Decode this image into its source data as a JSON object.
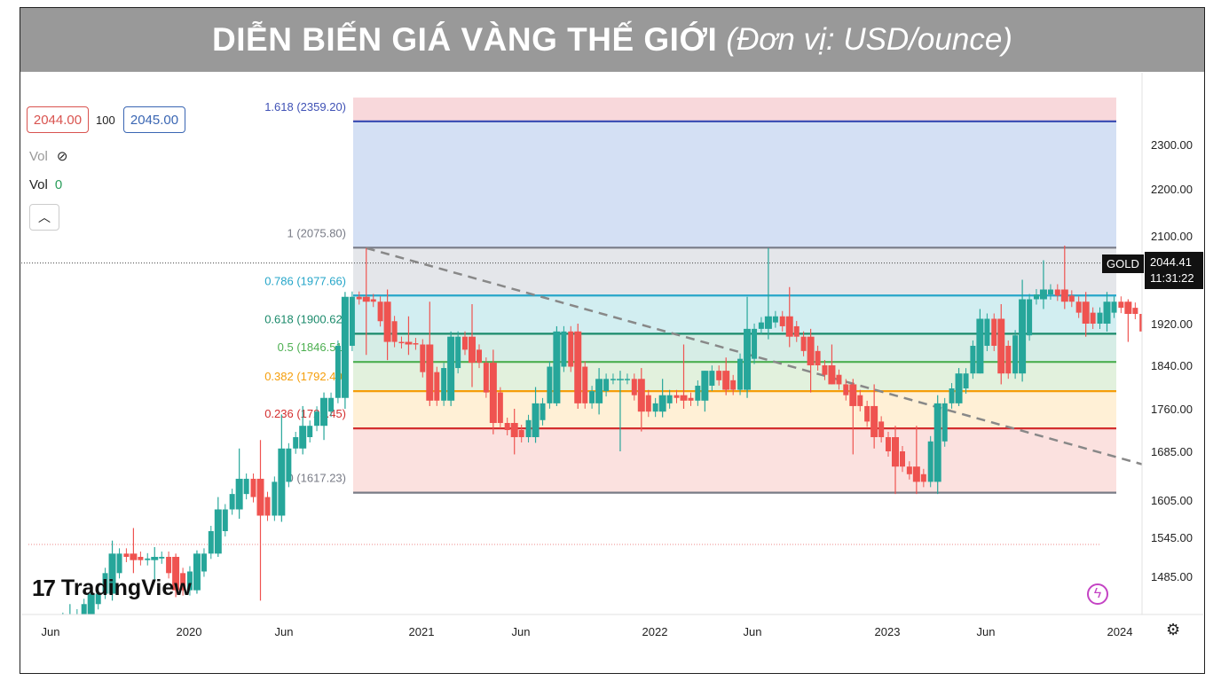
{
  "header": {
    "title": "DIỄN BIẾN GIÁ VÀNG THẾ GIỚI",
    "subtitle": "(Đơn vị: USD/ounce)"
  },
  "toolbar": {
    "sell_price": "2044.00",
    "spread": "100",
    "buy_price": "2045.00",
    "vol_hidden_label": "Vol",
    "vol_label": "Vol",
    "vol_value": "0",
    "collapse_icon": "chevron-up-icon",
    "hide_icon": "eye-off-icon"
  },
  "symbol": {
    "name": "GOLD",
    "last_price": "2044.41",
    "countdown": "11:31:22"
  },
  "brand": {
    "logo_mark": "17",
    "name": "TradingView"
  },
  "colors": {
    "up": "#26a69a",
    "down": "#ef5350",
    "banner": "#999999"
  },
  "chart_data": {
    "type": "candlestick",
    "title": "DIỄN BIẾN GIÁ VÀNG THẾ GIỚI",
    "ylabel": "USD/ounce",
    "x_ticks": [
      "Jun",
      "2020",
      "Jun",
      "2021",
      "Jun",
      "2022",
      "Jun",
      "2023",
      "Jun",
      "2024"
    ],
    "y_ticks": [
      "1485.00",
      "1545.00",
      "1605.00",
      "1685.00",
      "1760.00",
      "1840.00",
      "1920.00",
      "2100.00",
      "2200.00",
      "2300.00"
    ],
    "y_range": [
      1430,
      2410
    ],
    "x_range": [
      "2019-05",
      "2024-02"
    ],
    "last_price": 2044.41,
    "fibonacci": [
      {
        "label": "1.618 (2359.20)",
        "level": 1.618,
        "value": 2359.2,
        "color": "#3f51b5"
      },
      {
        "label": "1 (2075.80)",
        "level": 1,
        "value": 2075.8,
        "color": "#787b86"
      },
      {
        "label": "0.786 (1977.66)",
        "level": 0.786,
        "value": 1977.66,
        "color": "#26a6c9"
      },
      {
        "label": "0.618 (1900.62)",
        "level": 0.618,
        "value": 1900.62,
        "color": "#1b8a6b"
      },
      {
        "label": "0.5 (1846.51)",
        "level": 0.5,
        "value": 1846.51,
        "color": "#4caf50"
      },
      {
        "label": "0.382 (1792.40)",
        "level": 0.382,
        "value": 1792.4,
        "color": "#f59e0b"
      },
      {
        "label": "0.236 (1725.45)",
        "level": 0.236,
        "value": 1725.45,
        "color": "#d32f2f"
      },
      {
        "label": "0 (1617.23)",
        "level": 0,
        "value": 1617.23,
        "color": "#787b86"
      }
    ],
    "trend_line": {
      "from": {
        "date": "2020-08",
        "value": 2075
      },
      "to": {
        "date": "2024-01",
        "value": 1617
      }
    },
    "candles": [
      {
        "date": "2019-06",
        "o": 1420,
        "h": 1445,
        "c": 1430,
        "l": 1410
      },
      {
        "date": "2019-07",
        "o": 1430,
        "h": 1470,
        "c": 1460,
        "l": 1420
      },
      {
        "date": "2019-08",
        "o": 1460,
        "h": 1540,
        "c": 1520,
        "l": 1450
      },
      {
        "date": "2019-09",
        "o": 1520,
        "h": 1560,
        "c": 1510,
        "l": 1490
      },
      {
        "date": "2019-10",
        "o": 1510,
        "h": 1530,
        "c": 1515,
        "l": 1480
      },
      {
        "date": "2019-11",
        "o": 1515,
        "h": 1520,
        "c": 1465,
        "l": 1455
      },
      {
        "date": "2019-12",
        "o": 1465,
        "h": 1525,
        "c": 1520,
        "l": 1460
      },
      {
        "date": "2020-01",
        "o": 1520,
        "h": 1610,
        "c": 1590,
        "l": 1515
      },
      {
        "date": "2020-02",
        "o": 1590,
        "h": 1690,
        "c": 1640,
        "l": 1575
      },
      {
        "date": "2020-03",
        "o": 1640,
        "h": 1705,
        "c": 1580,
        "l": 1450
      },
      {
        "date": "2020-04",
        "o": 1580,
        "h": 1750,
        "c": 1690,
        "l": 1570
      },
      {
        "date": "2020-05",
        "o": 1690,
        "h": 1765,
        "c": 1730,
        "l": 1680
      },
      {
        "date": "2020-06",
        "o": 1730,
        "h": 1790,
        "c": 1780,
        "l": 1705
      },
      {
        "date": "2020-07",
        "o": 1780,
        "h": 1985,
        "c": 1975,
        "l": 1760
      },
      {
        "date": "2020-08",
        "o": 1975,
        "h": 2075,
        "c": 1965,
        "l": 1860
      },
      {
        "date": "2020-09",
        "o": 1965,
        "h": 1990,
        "c": 1885,
        "l": 1850
      },
      {
        "date": "2020-10",
        "o": 1885,
        "h": 1935,
        "c": 1880,
        "l": 1860
      },
      {
        "date": "2020-11",
        "o": 1880,
        "h": 1965,
        "c": 1775,
        "l": 1765
      },
      {
        "date": "2020-12",
        "o": 1775,
        "h": 1905,
        "c": 1895,
        "l": 1765
      },
      {
        "date": "2021-01",
        "o": 1895,
        "h": 1960,
        "c": 1845,
        "l": 1800
      },
      {
        "date": "2021-02",
        "o": 1845,
        "h": 1870,
        "c": 1735,
        "l": 1715
      },
      {
        "date": "2021-03",
        "o": 1735,
        "h": 1760,
        "c": 1710,
        "l": 1680
      },
      {
        "date": "2021-04",
        "o": 1710,
        "h": 1800,
        "c": 1770,
        "l": 1700
      },
      {
        "date": "2021-05",
        "o": 1770,
        "h": 1915,
        "c": 1905,
        "l": 1765
      },
      {
        "date": "2021-06",
        "o": 1905,
        "h": 1920,
        "c": 1770,
        "l": 1760
      },
      {
        "date": "2021-07",
        "o": 1770,
        "h": 1835,
        "c": 1815,
        "l": 1750
      },
      {
        "date": "2021-08",
        "o": 1815,
        "h": 1830,
        "c": 1815,
        "l": 1685
      },
      {
        "date": "2021-09",
        "o": 1815,
        "h": 1835,
        "c": 1755,
        "l": 1720
      },
      {
        "date": "2021-10",
        "o": 1755,
        "h": 1815,
        "c": 1785,
        "l": 1745
      },
      {
        "date": "2021-11",
        "o": 1785,
        "h": 1880,
        "c": 1775,
        "l": 1760
      },
      {
        "date": "2021-12",
        "o": 1775,
        "h": 1830,
        "c": 1830,
        "l": 1755
      },
      {
        "date": "2022-01",
        "o": 1830,
        "h": 1855,
        "c": 1795,
        "l": 1785
      },
      {
        "date": "2022-02",
        "o": 1795,
        "h": 1975,
        "c": 1910,
        "l": 1780
      },
      {
        "date": "2022-03",
        "o": 1910,
        "h": 2075,
        "c": 1935,
        "l": 1890
      },
      {
        "date": "2022-04",
        "o": 1935,
        "h": 1995,
        "c": 1895,
        "l": 1875
      },
      {
        "date": "2022-05",
        "o": 1895,
        "h": 1910,
        "c": 1840,
        "l": 1790
      },
      {
        "date": "2022-06",
        "o": 1840,
        "h": 1880,
        "c": 1805,
        "l": 1805
      },
      {
        "date": "2022-07",
        "o": 1805,
        "h": 1815,
        "c": 1765,
        "l": 1680
      },
      {
        "date": "2022-08",
        "o": 1765,
        "h": 1805,
        "c": 1710,
        "l": 1690
      },
      {
        "date": "2022-09",
        "o": 1710,
        "h": 1730,
        "c": 1660,
        "l": 1615
      },
      {
        "date": "2022-10",
        "o": 1660,
        "h": 1730,
        "c": 1635,
        "l": 1615
      },
      {
        "date": "2022-11",
        "o": 1635,
        "h": 1785,
        "c": 1770,
        "l": 1615
      },
      {
        "date": "2022-12",
        "o": 1770,
        "h": 1835,
        "c": 1825,
        "l": 1765
      },
      {
        "date": "2023-01",
        "o": 1825,
        "h": 1950,
        "c": 1930,
        "l": 1825
      },
      {
        "date": "2023-02",
        "o": 1930,
        "h": 1960,
        "c": 1825,
        "l": 1805
      },
      {
        "date": "2023-03",
        "o": 1825,
        "h": 2010,
        "c": 1970,
        "l": 1810
      },
      {
        "date": "2023-04",
        "o": 1970,
        "h": 2050,
        "c": 1990,
        "l": 1950
      },
      {
        "date": "2023-05",
        "o": 1990,
        "h": 2080,
        "c": 1965,
        "l": 1950
      },
      {
        "date": "2023-06",
        "o": 1965,
        "h": 1985,
        "c": 1920,
        "l": 1895
      },
      {
        "date": "2023-07",
        "o": 1920,
        "h": 1985,
        "c": 1965,
        "l": 1905
      },
      {
        "date": "2023-08",
        "o": 1965,
        "h": 1970,
        "c": 1940,
        "l": 1885
      },
      {
        "date": "2023-09",
        "o": 1940,
        "h": 1950,
        "c": 1870,
        "l": 1860
      },
      {
        "date": "2023-10",
        "o": 1870,
        "h": 2010,
        "c": 1985,
        "l": 1810
      },
      {
        "date": "2023-11",
        "o": 1985,
        "h": 2055,
        "c": 2035,
        "l": 1930
      },
      {
        "date": "2023-12",
        "o": 2035,
        "h": 2070,
        "c": 2044,
        "l": 2015
      }
    ]
  }
}
